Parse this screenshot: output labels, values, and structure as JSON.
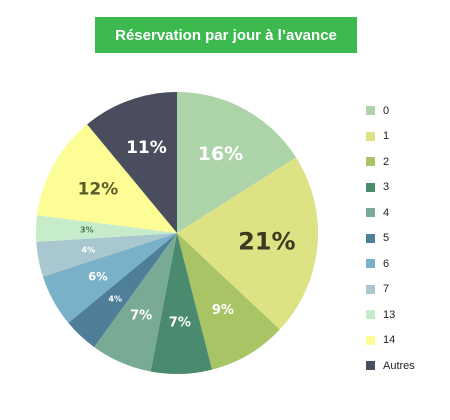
{
  "chart_data": {
    "type": "pie",
    "title": "Réservation par jour à l’avance",
    "categories": [
      "0",
      "1",
      "2",
      "3",
      "4",
      "5",
      "6",
      "7",
      "13",
      "14",
      "Autres"
    ],
    "values": [
      16,
      21,
      9,
      7,
      7,
      4,
      6,
      4,
      3,
      12,
      11
    ],
    "value_labels": [
      "16%",
      "21%",
      "9%",
      "7%",
      "7%",
      "4%",
      "6%",
      "4%",
      "3%",
      "12%",
      "11%"
    ],
    "colors": [
      "#add3a8",
      "#dde285",
      "#a8c464",
      "#4a8a6e",
      "#78aa95",
      "#4f7f98",
      "#79b2c8",
      "#a8c7cf",
      "#c6eccb",
      "#fdfd96",
      "#4a4d5e"
    ],
    "label_colors": [
      "#ffffff",
      "#3a3a20",
      "#ffffff",
      "#ffffff",
      "#ffffff",
      "#ffffff",
      "#ffffff",
      "#ffffff",
      "#4a7a55",
      "#5a5a2a",
      "#ffffff"
    ],
    "legend_position": "right"
  }
}
